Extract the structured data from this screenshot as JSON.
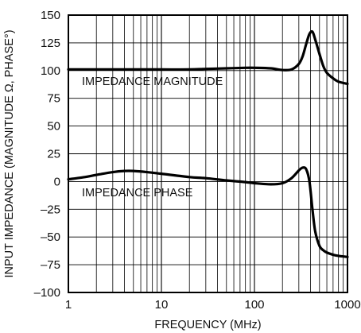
{
  "chart_data": {
    "type": "line",
    "xlabel": "FREQUENCY (MHz)",
    "ylabel": "INPUT IMPEDANCE (MAGNITUDE Ω, PHASE°)",
    "x_scale": "log",
    "xlim": [
      1,
      1000
    ],
    "ylim": [
      -100,
      150
    ],
    "x_ticks": [
      "1",
      "10",
      "100",
      "1000"
    ],
    "y_ticks": [
      "150",
      "125",
      "100",
      "75",
      "50",
      "25",
      "0",
      "–25",
      "–50",
      "–75",
      "–100"
    ],
    "grid": true,
    "annotations": {
      "magnitude": "IMPEDANCE MAGNITUDE",
      "phase": "IMPEDANCE PHASE"
    },
    "series": [
      {
        "name": "IMPEDANCE MAGNITUDE",
        "x": [
          1,
          2,
          5,
          10,
          20,
          30,
          50,
          80,
          100,
          150,
          200,
          250,
          300,
          330,
          360,
          390,
          420,
          450,
          500,
          550,
          600,
          700,
          800,
          1000
        ],
        "y": [
          101,
          101,
          101,
          101,
          101,
          101.5,
          102,
          102.5,
          102.5,
          102,
          100.5,
          101,
          106,
          113,
          124,
          133,
          135,
          128,
          115,
          104,
          98,
          93,
          90,
          88
        ]
      },
      {
        "name": "IMPEDANCE PHASE",
        "x": [
          1,
          1.5,
          2,
          3,
          4,
          5,
          7,
          10,
          20,
          30,
          50,
          80,
          100,
          150,
          200,
          250,
          300,
          330,
          360,
          390,
          420,
          450,
          500,
          550,
          600,
          700,
          800,
          1000
        ],
        "y": [
          2,
          4,
          6,
          8.5,
          9.5,
          9.5,
          8.5,
          7,
          4,
          3,
          1,
          -0.5,
          -1.5,
          -2.5,
          -1.5,
          3,
          10,
          12.5,
          11,
          0,
          -25,
          -45,
          -58,
          -62,
          -64,
          -66,
          -67,
          -68
        ]
      }
    ]
  }
}
